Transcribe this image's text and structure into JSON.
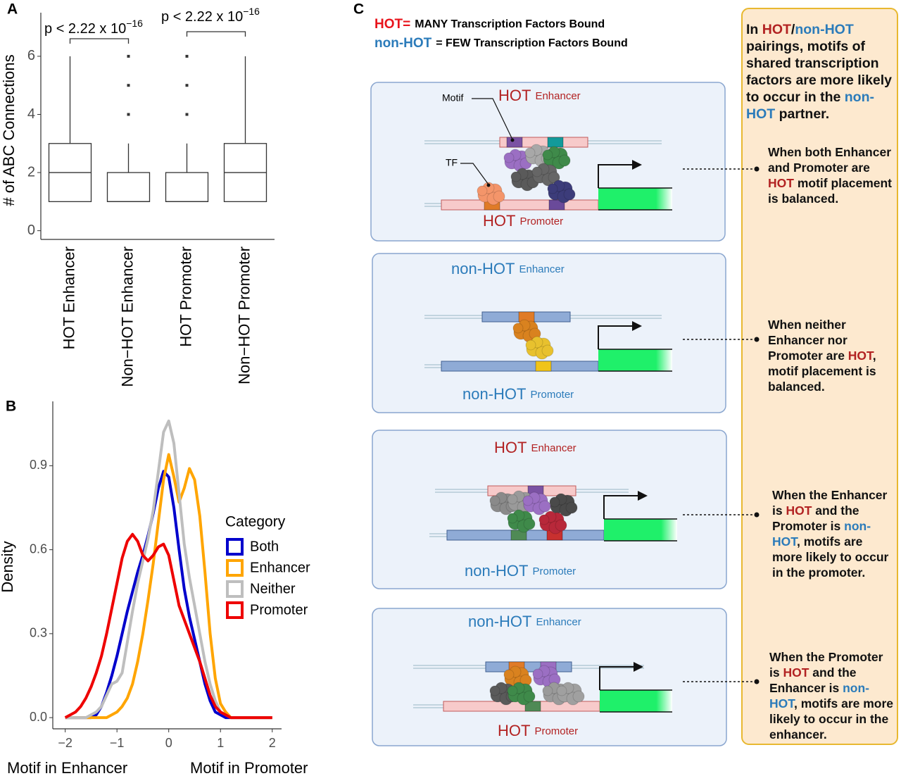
{
  "panel_labels": [
    "A",
    "B",
    "C"
  ],
  "chart_data": [
    {
      "type": "box",
      "categories": [
        "HOT Enhancer",
        "Non−HOT Enhancer",
        "HOT Promoter",
        "Non−HOT Promoter"
      ],
      "min": [
        1,
        1,
        1,
        1
      ],
      "q1": [
        1,
        1,
        1,
        1
      ],
      "median": [
        2,
        1,
        1,
        2
      ],
      "q3": [
        3,
        2,
        2,
        3
      ],
      "max": [
        6,
        3,
        3,
        6
      ],
      "outliers": [
        [],
        [
          4,
          5,
          6
        ],
        [
          4,
          5,
          6
        ],
        []
      ],
      "color": "#333333",
      "ylabel": "# of ABC Connections",
      "ylim": [
        -0.3,
        7.5
      ],
      "yticks": [
        0,
        2,
        4,
        6
      ],
      "annotations": [
        {
          "text": "p < 2.22 x 10",
          "exponent": "−16"
        },
        {
          "text": "p < 2.22 x 10",
          "exponent": "−16"
        }
      ]
    },
    {
      "type": "line",
      "x": [
        -2,
        -1.9,
        -1.8,
        -1.7,
        -1.6,
        -1.5,
        -1.4,
        -1.3,
        -1.2,
        -1.1,
        -1,
        -0.9,
        -0.8,
        -0.7,
        -0.6,
        -0.5,
        -0.4,
        -0.3,
        -0.2,
        -0.1,
        0,
        0.1,
        0.2,
        0.3,
        0.4,
        0.5,
        0.6,
        0.7,
        0.8,
        0.9,
        1,
        1.1,
        1.2,
        1.3,
        1.4,
        1.5,
        1.6,
        1.7,
        1.8,
        1.9,
        2
      ],
      "series": [
        {
          "name": "Both",
          "color": "#0000cc",
          "values": [
            0,
            0,
            0,
            0,
            0,
            0,
            0.01,
            0.04,
            0.09,
            0.15,
            0.22,
            0.3,
            0.38,
            0.45,
            0.52,
            0.58,
            0.65,
            0.73,
            0.82,
            0.88,
            0.86,
            0.75,
            0.6,
            0.46,
            0.36,
            0.28,
            0.2,
            0.12,
            0.06,
            0.02,
            0.01,
            0,
            0,
            0,
            0,
            0,
            0,
            0,
            0,
            0,
            0
          ]
        },
        {
          "name": "Enhancer",
          "color": "#ffa500",
          "values": [
            0,
            0,
            0,
            0,
            0,
            0,
            0,
            0,
            0,
            0.01,
            0.02,
            0.04,
            0.07,
            0.12,
            0.2,
            0.3,
            0.42,
            0.55,
            0.7,
            0.85,
            0.94,
            0.86,
            0.77,
            0.82,
            0.89,
            0.85,
            0.72,
            0.52,
            0.3,
            0.14,
            0.05,
            0.02,
            0,
            0,
            0,
            0,
            0,
            0,
            0,
            0,
            0
          ]
        },
        {
          "name": "Neither",
          "color": "#bebebe",
          "values": [
            0,
            0,
            0,
            0,
            0,
            0.01,
            0.02,
            0.04,
            0.08,
            0.12,
            0.13,
            0.16,
            0.27,
            0.38,
            0.48,
            0.56,
            0.64,
            0.74,
            0.88,
            1.02,
            1.06,
            0.98,
            0.8,
            0.62,
            0.5,
            0.4,
            0.3,
            0.2,
            0.12,
            0.06,
            0.02,
            0.01,
            0,
            0,
            0,
            0,
            0,
            0,
            0,
            0,
            0
          ]
        },
        {
          "name": "Promoter",
          "color": "#ee0000",
          "values": [
            0,
            0.01,
            0.02,
            0.04,
            0.07,
            0.11,
            0.16,
            0.22,
            0.3,
            0.39,
            0.48,
            0.57,
            0.63,
            0.655,
            0.63,
            0.58,
            0.56,
            0.58,
            0.61,
            0.62,
            0.58,
            0.49,
            0.4,
            0.35,
            0.3,
            0.25,
            0.2,
            0.14,
            0.08,
            0.04,
            0.02,
            0.01,
            0,
            0,
            0,
            0,
            0,
            0,
            0,
            0,
            0
          ]
        }
      ],
      "xlim": [
        -2.24,
        2.18
      ],
      "xticks": [
        {
          "value": -2,
          "label": "−2"
        },
        {
          "value": -1,
          "label": "−1"
        },
        0,
        1,
        2
      ],
      "ylim": [
        -0.04,
        1.13
      ],
      "yticks": [
        {
          "value": 0,
          "label": "0.0"
        },
        0.3,
        0.6,
        0.9
      ],
      "ylabel": "Density",
      "xlabels": [
        "Motif in Enhancer",
        "Motif in Promoter"
      ],
      "legend_title": "Category",
      "legend": "right"
    }
  ],
  "diagram": {
    "key": [
      {
        "term": "HOT=",
        "meaning": "MANY Transcription Factors Bound",
        "color": "#e8141c"
      },
      {
        "term": "non-HOT",
        "meaning": "= FEW Transcription Factors Bound",
        "color": "#2b7bba"
      }
    ],
    "callouts": [
      "Motif",
      "TF"
    ],
    "panels": [
      {
        "enhancer": {
          "status": "HOT",
          "role": "Enhancer",
          "color": "#b22222"
        },
        "promoter": {
          "status": "HOT",
          "role": "Promoter",
          "color": "#b22222"
        }
      },
      {
        "enhancer": {
          "status": "non-HOT",
          "role": "Enhancer",
          "color": "#2b7bba"
        },
        "promoter": {
          "status": "non-HOT",
          "role": "Promoter",
          "color": "#2b7bba"
        }
      },
      {
        "enhancer": {
          "status": "HOT",
          "role": "Enhancer",
          "color": "#b22222"
        },
        "promoter": {
          "status": "non-HOT",
          "role": "Promoter",
          "color": "#2b7bba"
        }
      },
      {
        "enhancer": {
          "status": "non-HOT",
          "role": "Enhancer",
          "color": "#2b7bba"
        },
        "promoter": {
          "status": "HOT",
          "role": "Promoter",
          "color": "#b22222"
        }
      }
    ],
    "summary": [
      {
        "text": "In "
      },
      {
        "text": "HOT",
        "color": "#b22222"
      },
      {
        "text": "/"
      },
      {
        "text": "non-HOT",
        "color": "#2b7bba"
      },
      {
        "text": " pairings, motifs of shared transcription factors are more likely to occur in the "
      },
      {
        "text": "non-HOT",
        "color": "#2b7bba"
      },
      {
        "text": " partner."
      }
    ],
    "notes": [
      [
        {
          "text": "When both Enhancer and Promoter are "
        },
        {
          "text": "HOT",
          "color": "#b22222"
        },
        {
          "text": " motif placement is balanced."
        }
      ],
      [
        {
          "text": "When neither Enhancer nor Promoter are "
        },
        {
          "text": "HOT",
          "color": "#b22222"
        },
        {
          "text": ", motif placement is balanced."
        }
      ],
      [
        {
          "text": "When the Enhancer is "
        },
        {
          "text": "HOT",
          "color": "#b22222"
        },
        {
          "text": " and the Promoter is "
        },
        {
          "text": "non-HOT",
          "color": "#2b7bba"
        },
        {
          "text": ", motifs are more likely to occur in the promoter."
        }
      ],
      [
        {
          "text": "When the Promoter is "
        },
        {
          "text": "HOT",
          "color": "#b22222"
        },
        {
          "text": " and the Enhancer is "
        },
        {
          "text": "non-HOT",
          "color": "#2b7bba"
        },
        {
          "text": ", motifs are more likely to occur in the enhancer."
        }
      ]
    ]
  }
}
